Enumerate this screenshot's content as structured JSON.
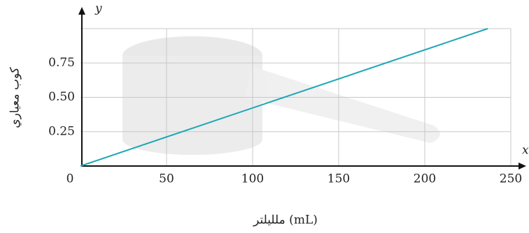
{
  "chart_data": {
    "type": "line",
    "x_axis_symbol": "x",
    "y_axis_symbol": "y",
    "xlabel": "ملليلتر (mL)",
    "ylabel": "كوب معياري",
    "x": [
      0,
      236.6
    ],
    "series": [
      {
        "color": "#1ba7b5",
        "values": [
          0,
          1
        ]
      }
    ],
    "xlim": [
      0,
      250
    ],
    "ylim": [
      0,
      1
    ],
    "xticks": [
      0,
      50,
      100,
      150,
      200,
      250
    ],
    "yticks": [
      0.25,
      {
        "value": 0.5,
        "label": "0.50"
      },
      0.75
    ],
    "grid": true
  }
}
